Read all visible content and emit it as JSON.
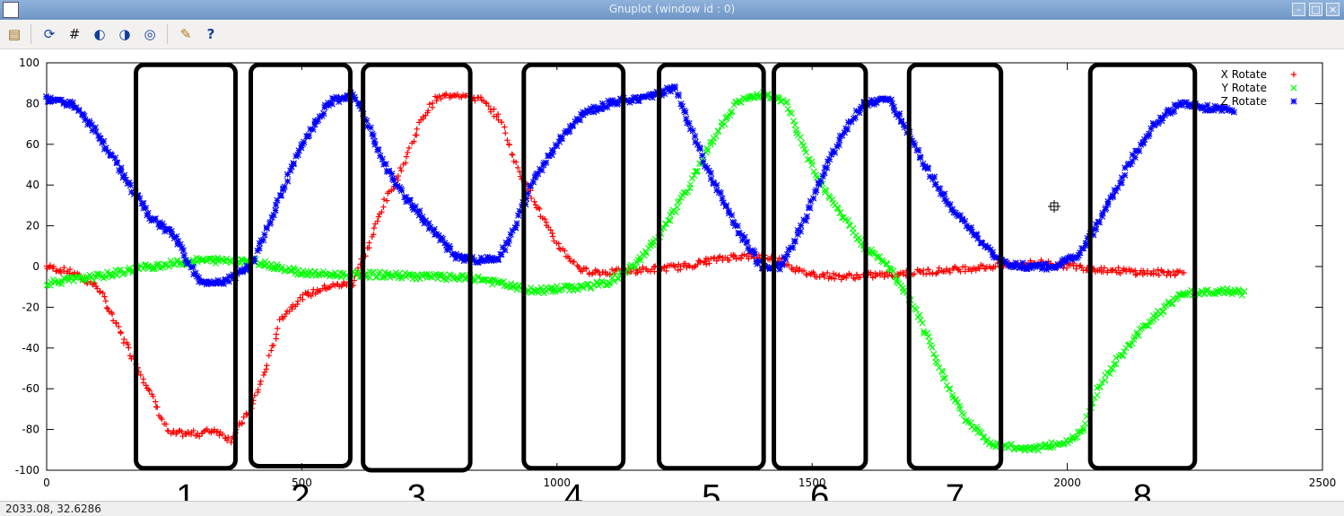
{
  "window": {
    "title": "Gnuplot (window id : 0)",
    "buttons": [
      "minimize",
      "maximize",
      "close"
    ]
  },
  "toolbar": [
    {
      "name": "copy-to-clipboard",
      "icon": "clipboard-icon"
    },
    {
      "name": "replot",
      "icon": "refresh-icon"
    },
    {
      "name": "toggle-grid",
      "icon": "grid-icon"
    },
    {
      "name": "previous-zoom",
      "icon": "zoom-previous-icon"
    },
    {
      "name": "next-zoom",
      "icon": "zoom-next-icon"
    },
    {
      "name": "autoscale",
      "icon": "autoscale-icon"
    },
    {
      "name": "settings",
      "icon": "wrench-icon"
    },
    {
      "name": "help",
      "icon": "help-icon"
    }
  ],
  "status": {
    "coordinates": "2033.08, 32.6286"
  },
  "chart_data": {
    "type": "scatter",
    "xlim": [
      0,
      2500
    ],
    "ylim": [
      -100,
      100
    ],
    "xticks": [
      0,
      500,
      1000,
      1500,
      2000,
      2500
    ],
    "yticks": [
      -100,
      -80,
      -60,
      -40,
      -20,
      0,
      20,
      40,
      60,
      80,
      100
    ],
    "legend_position": "top-right",
    "series": [
      {
        "name": "X Rotate",
        "color": "#ff0000",
        "marker": "plus",
        "points": [
          [
            0,
            0
          ],
          [
            50,
            -3
          ],
          [
            100,
            -10
          ],
          [
            150,
            -35
          ],
          [
            200,
            -60
          ],
          [
            240,
            -82
          ],
          [
            300,
            -82
          ],
          [
            330,
            -80
          ],
          [
            360,
            -85
          ],
          [
            400,
            -70
          ],
          [
            430,
            -50
          ],
          [
            460,
            -25
          ],
          [
            500,
            -15
          ],
          [
            550,
            -10
          ],
          [
            600,
            -8
          ],
          [
            630,
            10
          ],
          [
            660,
            30
          ],
          [
            700,
            50
          ],
          [
            730,
            70
          ],
          [
            760,
            82
          ],
          [
            800,
            85
          ],
          [
            850,
            82
          ],
          [
            890,
            72
          ],
          [
            920,
            50
          ],
          [
            960,
            30
          ],
          [
            990,
            15
          ],
          [
            1020,
            5
          ],
          [
            1050,
            -2
          ],
          [
            1100,
            -3
          ],
          [
            1150,
            -2
          ],
          [
            1200,
            -1
          ],
          [
            1250,
            0
          ],
          [
            1300,
            3
          ],
          [
            1350,
            5
          ],
          [
            1400,
            5
          ],
          [
            1440,
            3
          ],
          [
            1480,
            -3
          ],
          [
            1550,
            -5
          ],
          [
            1650,
            -4
          ],
          [
            1750,
            -2
          ],
          [
            1850,
            0
          ],
          [
            1950,
            2
          ],
          [
            2050,
            -1
          ],
          [
            2150,
            -3
          ],
          [
            2230,
            -3
          ]
        ]
      },
      {
        "name": "Y Rotate",
        "color": "#00ff00",
        "marker": "cross",
        "points": [
          [
            0,
            -8
          ],
          [
            100,
            -5
          ],
          [
            200,
            0
          ],
          [
            300,
            3
          ],
          [
            400,
            3
          ],
          [
            450,
            0
          ],
          [
            500,
            -3
          ],
          [
            550,
            -4
          ],
          [
            650,
            -4
          ],
          [
            750,
            -5
          ],
          [
            850,
            -6
          ],
          [
            950,
            -12
          ],
          [
            1050,
            -10
          ],
          [
            1100,
            -8
          ],
          [
            1150,
            0
          ],
          [
            1200,
            15
          ],
          [
            1250,
            35
          ],
          [
            1300,
            60
          ],
          [
            1350,
            80
          ],
          [
            1400,
            85
          ],
          [
            1450,
            80
          ],
          [
            1480,
            60
          ],
          [
            1520,
            40
          ],
          [
            1560,
            25
          ],
          [
            1600,
            10
          ],
          [
            1650,
            0
          ],
          [
            1700,
            -20
          ],
          [
            1750,
            -50
          ],
          [
            1800,
            -75
          ],
          [
            1850,
            -87
          ],
          [
            1900,
            -89
          ],
          [
            1950,
            -89
          ],
          [
            2000,
            -86
          ],
          [
            2030,
            -80
          ],
          [
            2060,
            -60
          ],
          [
            2100,
            -45
          ],
          [
            2150,
            -30
          ],
          [
            2200,
            -18
          ],
          [
            2250,
            -13
          ],
          [
            2300,
            -12
          ],
          [
            2350,
            -13
          ],
          [
            2230,
            -13
          ]
        ]
      },
      {
        "name": "Z Rotate",
        "color": "#0000ff",
        "marker": "star",
        "points": [
          [
            0,
            82
          ],
          [
            50,
            80
          ],
          [
            100,
            65
          ],
          [
            150,
            45
          ],
          [
            200,
            25
          ],
          [
            250,
            15
          ],
          [
            300,
            -8
          ],
          [
            350,
            -7
          ],
          [
            400,
            0
          ],
          [
            450,
            30
          ],
          [
            500,
            60
          ],
          [
            550,
            80
          ],
          [
            600,
            85
          ],
          [
            630,
            70
          ],
          [
            660,
            50
          ],
          [
            700,
            35
          ],
          [
            750,
            20
          ],
          [
            800,
            5
          ],
          [
            850,
            3
          ],
          [
            890,
            5
          ],
          [
            920,
            20
          ],
          [
            950,
            40
          ],
          [
            1000,
            60
          ],
          [
            1050,
            75
          ],
          [
            1100,
            80
          ],
          [
            1150,
            82
          ],
          [
            1200,
            85
          ],
          [
            1230,
            88
          ],
          [
            1260,
            70
          ],
          [
            1300,
            45
          ],
          [
            1350,
            20
          ],
          [
            1400,
            0
          ],
          [
            1440,
            0
          ],
          [
            1480,
            20
          ],
          [
            1520,
            45
          ],
          [
            1560,
            65
          ],
          [
            1600,
            80
          ],
          [
            1650,
            82
          ],
          [
            1680,
            70
          ],
          [
            1720,
            50
          ],
          [
            1770,
            30
          ],
          [
            1820,
            15
          ],
          [
            1870,
            2
          ],
          [
            1920,
            0
          ],
          [
            1970,
            0
          ],
          [
            2020,
            5
          ],
          [
            2070,
            25
          ],
          [
            2120,
            50
          ],
          [
            2170,
            70
          ],
          [
            2220,
            80
          ],
          [
            2270,
            78
          ],
          [
            2330,
            77
          ]
        ]
      }
    ],
    "annotation_boxes": [
      {
        "label": "1",
        "x_range": [
          175,
          370
        ],
        "y_range": [
          -99,
          99
        ]
      },
      {
        "label": "2",
        "x_range": [
          400,
          595
        ],
        "y_range": [
          -98,
          99
        ]
      },
      {
        "label": "3",
        "x_range": [
          620,
          830
        ],
        "y_range": [
          -100,
          99
        ]
      },
      {
        "label": "4",
        "x_range": [
          935,
          1130
        ],
        "y_range": [
          -99,
          99
        ]
      },
      {
        "label": "5",
        "x_range": [
          1200,
          1405
        ],
        "y_range": [
          -99,
          99
        ]
      },
      {
        "label": "6",
        "x_range": [
          1425,
          1605
        ],
        "y_range": [
          -99,
          99
        ]
      },
      {
        "label": "7",
        "x_range": [
          1690,
          1870
        ],
        "y_range": [
          -99,
          99
        ]
      },
      {
        "label": "8",
        "x_range": [
          2045,
          2250
        ],
        "y_range": [
          -99,
          99
        ]
      }
    ]
  }
}
